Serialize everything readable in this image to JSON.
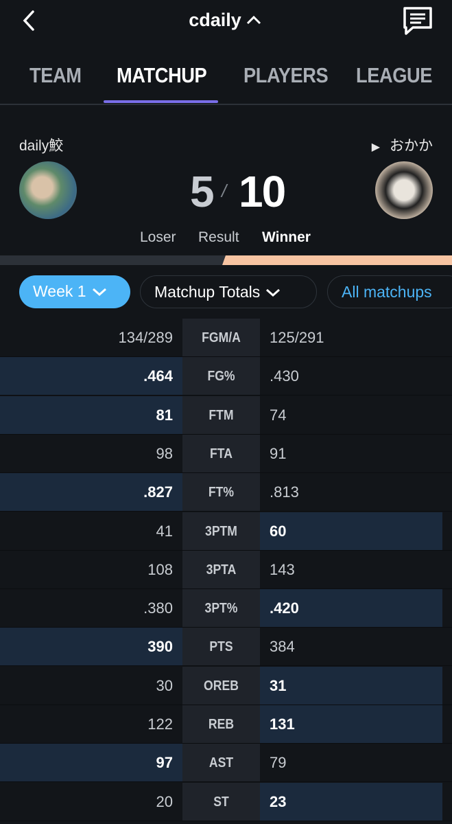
{
  "header": {
    "title": "cdaily"
  },
  "tabs": [
    {
      "label": "TEAM",
      "active": false
    },
    {
      "label": "MATCHUP",
      "active": true
    },
    {
      "label": "PLAYERS",
      "active": false
    },
    {
      "label": "LEAGUE",
      "active": false
    }
  ],
  "matchup": {
    "left_team": "daily鮫",
    "right_team": "おかか",
    "left_score": 5,
    "separator": "/",
    "right_score": 10,
    "left_label": "Loser",
    "result_label": "Result",
    "right_label": "Winner"
  },
  "filters": {
    "week": "Week 1",
    "totals": "Matchup Totals",
    "scope": "All matchups"
  },
  "table": {
    "rows": [
      {
        "left": "134/289",
        "stat": "FGM/A",
        "right": "125/291"
      },
      {
        "left": ".464",
        "stat": "FG%",
        "right": ".430",
        "winner": "left"
      },
      {
        "left": "81",
        "stat": "FTM",
        "right": "74",
        "winner": "left"
      },
      {
        "left": "98",
        "stat": "FTA",
        "right": "91"
      },
      {
        "left": ".827",
        "stat": "FT%",
        "right": ".813",
        "winner": "left"
      },
      {
        "left": "41",
        "stat": "3PTM",
        "right": "60",
        "winner": "right"
      },
      {
        "left": "108",
        "stat": "3PTA",
        "right": "143"
      },
      {
        "left": ".380",
        "stat": "3PT%",
        "right": ".420",
        "winner": "right"
      },
      {
        "left": "390",
        "stat": "PTS",
        "right": "384",
        "winner": "left"
      },
      {
        "left": "30",
        "stat": "OREB",
        "right": "31",
        "winner": "right"
      },
      {
        "left": "122",
        "stat": "REB",
        "right": "131",
        "winner": "right"
      },
      {
        "left": "97",
        "stat": "AST",
        "right": "79",
        "winner": "left"
      },
      {
        "left": "20",
        "stat": "ST",
        "right": "23",
        "winner": "right"
      }
    ]
  }
}
